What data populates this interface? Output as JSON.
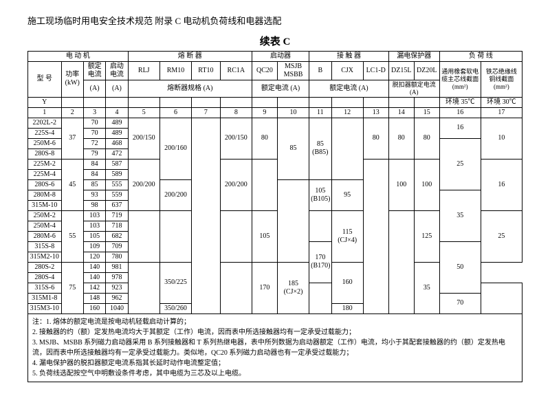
{
  "header": "施工现场临时用电安全技术规范 附录 C 电动机负荷线和电器选配",
  "title": "续表 C",
  "groupHeaders": {
    "motor": "电 动 机",
    "fuse": "熔 断 器",
    "starter": "启动器",
    "contactor": "接 触 器",
    "leakage": "漏电保护器",
    "load": "负 荷 线"
  },
  "subHeaders": {
    "model": "型 号",
    "power": "功率\n(kW)",
    "ratedCurrent": "额定\n电流",
    "startCurrent": "启动\n电流",
    "rlj": "RLJ",
    "rm10": "RM10",
    "rt10": "RT10",
    "rc1a": "RC1A",
    "qc20": "QC20",
    "msjb": "MSJB\nMSBB",
    "b": "B",
    "cjx": "CJX",
    "lc1d": "LC1-D",
    "dz15l": "DZ15L",
    "dz20l": "DZ20L",
    "rubber": "通用橡套软电\n缆主芯线截面\n(mm²)",
    "copper": "铁芯绝缘线\n铜线截面\n(mm²)"
  },
  "unitRow": {
    "y": "Y",
    "aUnit": "(A)",
    "fuseSpec": "熔断器规格 (A)",
    "starterSpec": "额定电流 (A)",
    "contactSpec": "额定电流 (A)",
    "leakSpec": "脱扣器额定电流\n(A)",
    "env35": "环境 35℃",
    "env30": "环境 30℃"
  },
  "idx": [
    "1",
    "2",
    "3",
    "4",
    "5",
    "6",
    "7",
    "8",
    "9",
    "10",
    "11",
    "12",
    "13",
    "14",
    "15",
    "16",
    "17"
  ],
  "g1": {
    "models": [
      "2202L-2",
      "225S-4",
      "250M-6",
      "280S-8"
    ],
    "kw": "37",
    "rc": [
      "70",
      "70",
      "72",
      "79"
    ],
    "sc": [
      "489",
      "489",
      "468",
      "472"
    ],
    "rlj": "200/150",
    "rm10_a": "200/160",
    "rc1a": "200/150",
    "qc20": "80",
    "msjb_top": "85",
    "b": "85\n(B85)",
    "lc1d": "80",
    "dz15l": "80",
    "dz20l": "80",
    "rubber": "16",
    "copper": "10"
  },
  "g2": {
    "models": [
      "225M-2",
      "225M-4",
      "280S-6",
      "280M-8",
      "315M-10"
    ],
    "kw": "45",
    "rc": [
      "84",
      "84",
      "85",
      "93",
      "98"
    ],
    "sc": [
      "587",
      "589",
      "555",
      "559",
      "637"
    ],
    "rlj": "200/200",
    "rm10_b": "200/200",
    "rc1a": "200/200",
    "b": "105\n(B105)",
    "cjx": "95",
    "dz15l": "100",
    "dz20l": "100",
    "rubber": "25",
    "copper": "16"
  },
  "g3": {
    "models": [
      "250M-2",
      "250M-4",
      "280M-6",
      "315S-8",
      "315M2-10"
    ],
    "kw": "55",
    "rc": [
      "103",
      "103",
      "105",
      "109",
      "120"
    ],
    "sc": [
      "719",
      "718",
      "682",
      "709",
      "780"
    ],
    "qc20": "105",
    "msjb_bot": "170\n(B170)",
    "cjx": "115\n(CJ×4)",
    "dz20l": "125",
    "rubber": "35",
    "copper": "25"
  },
  "g4": {
    "models": [
      "280S-2",
      "280S-4",
      "315S-6",
      "315M1-8",
      "315M3-10"
    ],
    "kw": "75",
    "rc": [
      "140",
      "140",
      "142",
      "148",
      "160"
    ],
    "sc": [
      "981",
      "978",
      "923",
      "962",
      "1040"
    ],
    "rm10_a": "350/225",
    "rm10_b": "350/260",
    "qc20": "170",
    "cjx": "185\n(CJ×2)",
    "dz20l_a": "160",
    "dz20l_b": "180",
    "rubber_a": "50",
    "rubber_b": "70",
    "copper": "35"
  },
  "notes": {
    "label": "注：",
    "n1": "1. 熔体的额定电流是按电动机轻载启动计算的；",
    "n2": "2. 接触器的约（额）定发热电流均大于其额定（工作）电流，因而表中所选接触器均有一定承受过载能力；",
    "n3": "3. MSJB、MSBB 系列磁力启动器采用 B 系列接触器和 T 系列热继电器，表中所列数据为启动器额定（工作）电流，均小于其配套接触器的约（额）定发热电流，因而表中所选接触器均有一定承受过载能力。类似地，QC20 系列磁力启动器也有一定承受过载能力；",
    "n4": "4. 漏电保护器的脱扣器额定电流系指其长延时动作电流整定值；",
    "n5": "5. 负荷线选配按空气中明敷设条件考虑，其中电缆为三芯及以上电缆。"
  }
}
